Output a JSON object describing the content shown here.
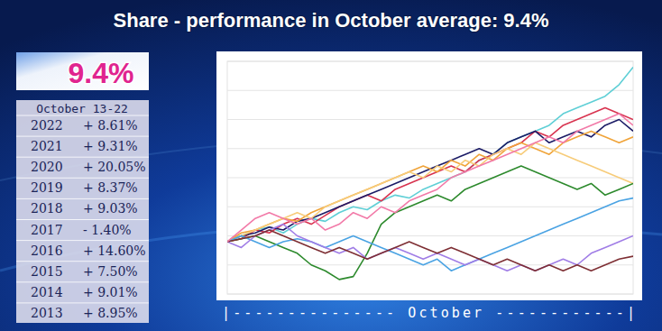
{
  "header": {
    "title": "Share - performance in October average: 9.4%"
  },
  "badge": "9.4%",
  "table": {
    "header": "October 13-22",
    "rows": [
      [
        "2022",
        "+ 8.61%"
      ],
      [
        "2021",
        "+ 9.31%"
      ],
      [
        "2020",
        "+ 20.05%"
      ],
      [
        "2019",
        "+ 8.37%"
      ],
      [
        "2018",
        "+ 9.03%"
      ],
      [
        "2017",
        "- 1.40%"
      ],
      [
        "2016",
        "+ 14.60%"
      ],
      [
        "2015",
        "+ 7.50%"
      ],
      [
        "2014",
        "+ 9.01%"
      ],
      [
        "2013",
        "+ 8.95%"
      ]
    ]
  },
  "chart_data": {
    "type": "line",
    "x_label": "|--------------- October ------------|",
    "x": [
      0,
      1,
      2,
      3,
      4,
      5,
      6,
      7,
      8,
      9,
      10,
      11,
      12,
      13,
      14,
      15,
      16,
      17,
      18,
      19,
      20,
      21,
      22,
      23,
      24,
      25,
      26,
      27,
      28,
      29
    ],
    "xlim": [
      0,
      29
    ],
    "ylim": [
      -10,
      30
    ],
    "yticks": [
      -10,
      -5,
      0,
      5,
      10,
      15,
      20,
      25,
      30
    ],
    "grid": true,
    "tick_labels": false,
    "series": [
      {
        "color": "#5fcfd6",
        "values": [
          -1,
          0,
          1,
          1.5,
          0.5,
          2,
          3,
          2.5,
          4,
          5,
          4.5,
          6,
          7,
          6.5,
          8,
          9,
          10,
          11,
          13,
          14,
          16,
          17,
          18,
          19,
          21,
          22,
          23,
          24,
          26,
          29
        ]
      },
      {
        "color": "#d8334f",
        "values": [
          -1,
          -0.5,
          1,
          0.5,
          2,
          3,
          2,
          3.5,
          5,
          6,
          7,
          6,
          8,
          9,
          10,
          11,
          12,
          11,
          13,
          14,
          15,
          16,
          18,
          17,
          19,
          20,
          21,
          22,
          21,
          20
        ]
      },
      {
        "color": "#1c1c66",
        "values": [
          -1,
          0,
          0.5,
          1.5,
          1,
          2.5,
          3,
          4,
          5,
          6,
          7,
          8,
          9,
          10,
          11,
          12,
          13,
          14,
          15,
          14,
          16,
          17,
          18,
          16,
          17,
          18,
          17,
          19,
          20,
          18
        ]
      },
      {
        "color": "#f0a43a",
        "values": [
          -1,
          0.5,
          1,
          2,
          3,
          2.5,
          4,
          5,
          6,
          7,
          8,
          9,
          10,
          11,
          12,
          11,
          13,
          12,
          14,
          13,
          15,
          16,
          15,
          14,
          16,
          17,
          18,
          17,
          16,
          17
        ]
      },
      {
        "color": "#f7cc7a",
        "values": [
          -1,
          0,
          1,
          2,
          3,
          4,
          3,
          5,
          6,
          7,
          8,
          9,
          10,
          11,
          10,
          12,
          11,
          13,
          12,
          14,
          15,
          14,
          16,
          15,
          14,
          13,
          12,
          11,
          10,
          9
        ]
      },
      {
        "color": "#2d8a2d",
        "values": [
          -1,
          -0.5,
          0,
          -1,
          -2,
          -3,
          -5,
          -6,
          -7.5,
          -7,
          -3,
          2,
          4,
          5,
          6,
          7,
          6,
          8,
          9,
          10,
          11,
          12,
          11,
          10,
          9,
          8,
          9,
          7,
          8,
          9
        ]
      },
      {
        "color": "#4aa3e3",
        "values": [
          -1,
          0,
          -1,
          -2,
          -1,
          -0.5,
          -1,
          -2,
          -1,
          0,
          -1,
          -2,
          -3,
          -4,
          -5,
          -4,
          -6,
          -5,
          -4,
          -3,
          -2,
          -1,
          0,
          1,
          2,
          3,
          4,
          5,
          6,
          6.5
        ]
      },
      {
        "color": "#a07de6",
        "values": [
          -1,
          -2,
          0,
          1,
          2,
          0,
          -1,
          -2,
          -3,
          -2,
          -4,
          -3,
          -2,
          -3,
          -4,
          -3,
          -4,
          -5,
          -4,
          -5,
          -6,
          -5,
          -6,
          -5,
          -4,
          -5,
          -3,
          -2,
          -1,
          0
        ]
      },
      {
        "color": "#7e2f34",
        "values": [
          -1,
          -0.5,
          0,
          1,
          0,
          -1,
          -2,
          -3,
          -2,
          -3,
          -4,
          -3,
          -2,
          -1,
          -2,
          -3,
          -2,
          -3,
          -4,
          -5,
          -4,
          -5,
          -6,
          -5,
          -6,
          -5,
          -6,
          -5,
          -4,
          -3.5
        ]
      },
      {
        "color": "#f27aa8",
        "values": [
          -1,
          1,
          3,
          4,
          3,
          2,
          3,
          1,
          2,
          4,
          3,
          5,
          4,
          6,
          7,
          8,
          10,
          11,
          12,
          13,
          14,
          15,
          16,
          17,
          16,
          18,
          19,
          20,
          21,
          19
        ]
      }
    ]
  }
}
